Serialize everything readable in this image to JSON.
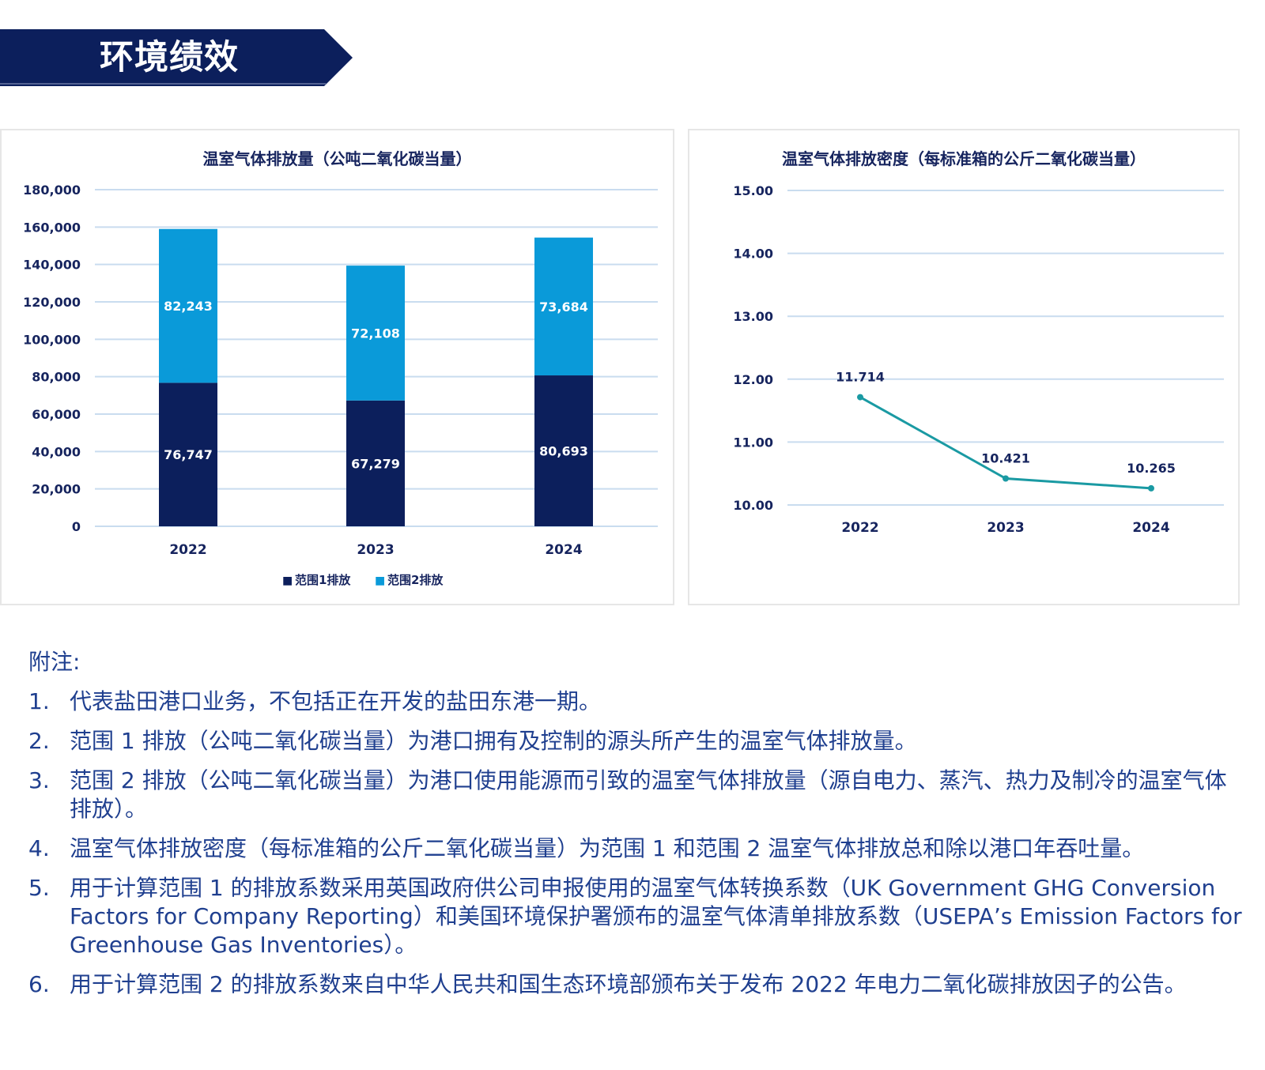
{
  "header": {
    "title": "环境绩效"
  },
  "colors": {
    "navy": "#0c1f5c",
    "blue": "#0a9ad9",
    "teal": "#1a9aa3",
    "grid": "#c9dcef"
  },
  "chart_data": [
    {
      "type": "bar",
      "stacked": true,
      "title": "温室气体排放量（公吨二氧化碳当量）",
      "categories": [
        "2022",
        "2023",
        "2024"
      ],
      "series": [
        {
          "name": "范围1排放",
          "values": [
            76747,
            67279,
            80693
          ],
          "labels": [
            "76,747",
            "67,279",
            "80,693"
          ]
        },
        {
          "name": "范围2排放",
          "values": [
            82243,
            72108,
            73684
          ],
          "labels": [
            "82,243",
            "72,108",
            "73,684"
          ]
        }
      ],
      "ylim": [
        0,
        180000
      ],
      "yticks": [
        "0",
        "20,000",
        "40,000",
        "60,000",
        "80,000",
        "100,000",
        "120,000",
        "140,000",
        "160,000",
        "180,000"
      ],
      "legend_markers": [
        "■",
        "■"
      ],
      "legend": "bottom"
    },
    {
      "type": "line",
      "title": "温室气体排放密度（每标准箱的公斤二氧化碳当量）",
      "categories": [
        "2022",
        "2023",
        "2024"
      ],
      "values": [
        11.714,
        10.421,
        10.265
      ],
      "labels": [
        "11.714",
        "10.421",
        "10.265"
      ],
      "ylim": [
        10,
        15
      ],
      "yticks": [
        "10.00",
        "11.00",
        "12.00",
        "13.00",
        "14.00",
        "15.00"
      ]
    }
  ],
  "notes": {
    "title": "附注:",
    "items": [
      {
        "num": "1.",
        "text": "代表盐田港口业务，不包括正在开发的盐田东港一期。"
      },
      {
        "num": "2.",
        "text": "范围 1 排放（公吨二氧化碳当量）为港口拥有及控制的源头所产生的温室气体排放量。"
      },
      {
        "num": "3.",
        "text": "范围 2 排放（公吨二氧化碳当量）为港口使用能源而引致的温室气体排放量（源自电力、蒸汽、热力及制冷的温室气体排放）。"
      },
      {
        "num": "4.",
        "text": "温室气体排放密度（每标准箱的公斤二氧化碳当量）为范围 1 和范围 2 温室气体排放总和除以港口年吞吐量。"
      },
      {
        "num": "5.",
        "text": "用于计算范围 1 的排放系数采用英国政府供公司申报使用的温室气体转换系数（UK Government GHG Conversion Factors for Company Reporting）和美国环境保护署颁布的温室气体清单排放系数（USEPA’s Emission Factors for Greenhouse Gas Inventories）。"
      },
      {
        "num": "6.",
        "text": "用于计算范围 2 的排放系数来自中华人民共和国生态环境部颁布关于发布 2022 年电力二氧化碳排放因子的公告。"
      }
    ]
  }
}
